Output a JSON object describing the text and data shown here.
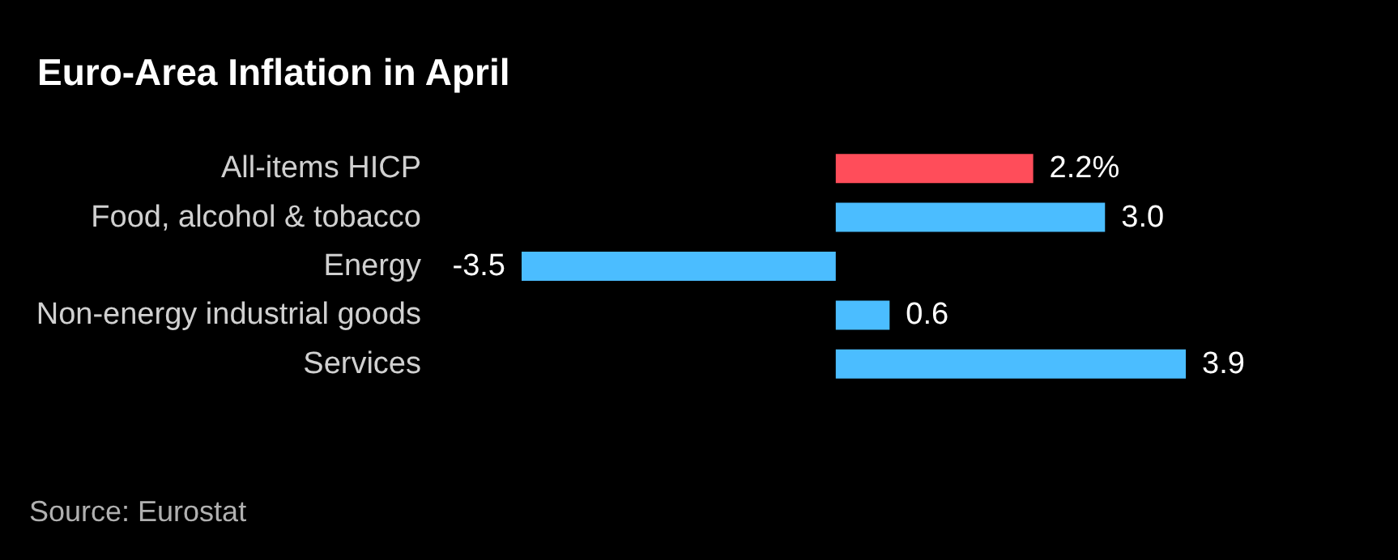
{
  "chart_data": {
    "type": "bar",
    "orientation": "horizontal",
    "title": "Euro-Area Inflation in April",
    "categories": [
      "All-items HICP",
      "Food, alcohol & tobacco",
      "Energy",
      "Non-energy industrial goods",
      "Services"
    ],
    "values": [
      2.2,
      3.0,
      -3.5,
      0.6,
      3.9
    ],
    "colors": [
      "#ff4d5a",
      "#4bbdff",
      "#4bbdff",
      "#4bbdff",
      "#4bbdff"
    ],
    "value_labels": [
      "2.2%",
      "3.0",
      "-3.5",
      "0.6",
      "3.9"
    ],
    "annotations": [
      "Source: Eurostat"
    ]
  }
}
